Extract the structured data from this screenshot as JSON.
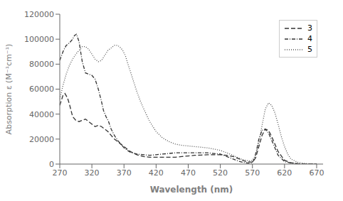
{
  "chart_data": {
    "type": "line",
    "title": "",
    "xlabel": "Wavelength (nm)",
    "ylabel": "Absorption ε (M⁻¹cm⁻¹)",
    "xlim": [
      270,
      680
    ],
    "ylim": [
      0,
      120000
    ],
    "xticks": [
      270,
      320,
      370,
      420,
      470,
      520,
      570,
      620,
      670
    ],
    "yticks": [
      0,
      20000,
      40000,
      60000,
      80000,
      100000,
      120000
    ],
    "legend": "upper right",
    "series": [
      {
        "name": "3",
        "color": "#333333",
        "line_style": "dashed",
        "x": [
          270,
          275,
          278,
          282,
          285,
          290,
          295,
          300,
          305,
          310,
          315,
          320,
          325,
          330,
          335,
          340,
          345,
          350,
          355,
          360,
          365,
          370,
          380,
          390,
          400,
          410,
          420,
          430,
          440,
          450,
          460,
          470,
          480,
          490,
          500,
          510,
          520,
          530,
          540,
          550,
          560,
          570,
          575,
          580,
          585,
          590,
          595,
          600,
          610,
          620,
          630,
          640,
          650,
          660,
          670
        ],
        "values": [
          47000,
          55000,
          56500,
          53000,
          48000,
          38000,
          35000,
          34000,
          35000,
          36000,
          34000,
          32000,
          30000,
          31000,
          30000,
          28000,
          26000,
          23000,
          20000,
          18000,
          16000,
          14000,
          10000,
          7500,
          6000,
          5500,
          5500,
          5500,
          5500,
          5500,
          6000,
          6500,
          7000,
          7200,
          7500,
          7500,
          7500,
          7000,
          6000,
          4000,
          2000,
          1500,
          5000,
          14000,
          23000,
          28000,
          27000,
          22000,
          10000,
          3000,
          1000,
          400,
          100,
          50,
          20
        ]
      },
      {
        "name": "4",
        "color": "#333333",
        "line_style": "dashdot",
        "x": [
          270,
          275,
          280,
          285,
          290,
          293,
          296,
          300,
          305,
          310,
          315,
          320,
          325,
          330,
          335,
          338,
          342,
          346,
          350,
          355,
          360,
          365,
          370,
          375,
          380,
          390,
          400,
          410,
          420,
          430,
          440,
          450,
          460,
          470,
          480,
          490,
          500,
          510,
          520,
          530,
          540,
          550,
          560,
          568,
          572,
          576,
          580,
          585,
          590,
          595,
          600,
          605,
          610,
          620,
          630,
          640,
          650,
          660,
          670
        ],
        "values": [
          83000,
          90000,
          95000,
          97000,
          100000,
          103000,
          104000,
          98000,
          82000,
          73000,
          72000,
          71000,
          68000,
          60000,
          50000,
          43000,
          38000,
          34000,
          28000,
          23000,
          19000,
          16000,
          13000,
          11000,
          9500,
          8000,
          7500,
          7000,
          7500,
          8000,
          8500,
          9000,
          9000,
          9000,
          9000,
          9000,
          9000,
          8500,
          8000,
          6000,
          4000,
          2000,
          1000,
          500,
          3000,
          10000,
          20000,
          27000,
          28000,
          25000,
          19000,
          13000,
          7000,
          2000,
          800,
          300,
          100,
          50,
          20
        ]
      },
      {
        "name": "5",
        "color": "#555555",
        "line_style": "dotted",
        "x": [
          270,
          275,
          280,
          285,
          290,
          295,
          300,
          305,
          310,
          315,
          320,
          325,
          330,
          335,
          340,
          345,
          350,
          355,
          360,
          365,
          368,
          372,
          375,
          380,
          385,
          390,
          395,
          400,
          410,
          420,
          430,
          440,
          450,
          460,
          470,
          480,
          490,
          500,
          510,
          520,
          530,
          540,
          550,
          555,
          560,
          565,
          570,
          575,
          580,
          585,
          590,
          595,
          600,
          605,
          610,
          615,
          620,
          625,
          630,
          640,
          650,
          660,
          670
        ],
        "values": [
          52000,
          63000,
          72000,
          79000,
          84000,
          88000,
          91000,
          94000,
          94000,
          92000,
          88000,
          84000,
          82000,
          83000,
          87000,
          91000,
          93000,
          95000,
          95000,
          93000,
          91000,
          87000,
          82000,
          74000,
          66000,
          58000,
          51000,
          45000,
          34000,
          26000,
          21000,
          18000,
          16000,
          15000,
          14500,
          14000,
          13500,
          13000,
          12000,
          11000,
          9000,
          7000,
          4500,
          3500,
          3000,
          2500,
          3000,
          7000,
          17000,
          31000,
          44000,
          49000,
          47000,
          41000,
          32000,
          22000,
          14000,
          8000,
          4000,
          1500,
          500,
          150,
          50
        ]
      }
    ]
  }
}
